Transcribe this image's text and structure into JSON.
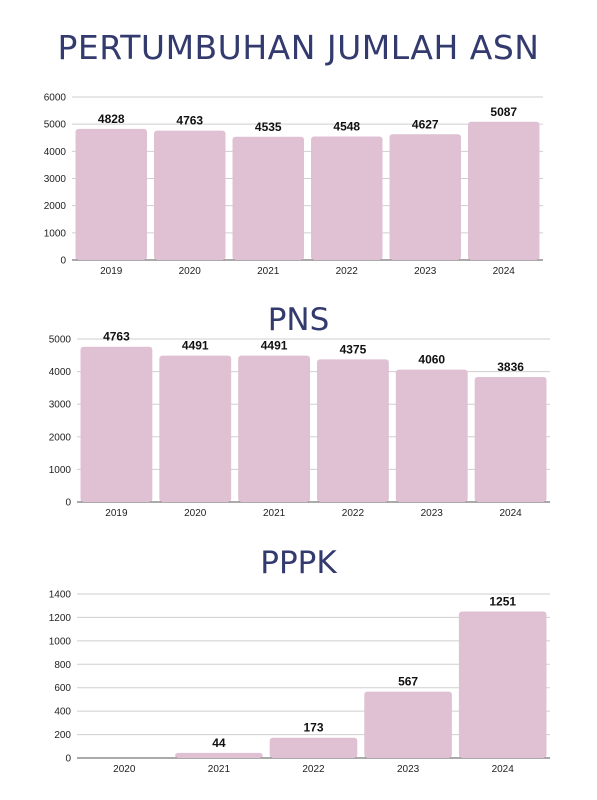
{
  "titles": [
    "PERTUMBUHAN JUMLAH ASN",
    "PNS",
    "PPPK"
  ],
  "bar_color": "#dfc1d3",
  "title_color": "#333a6e",
  "chart_data": [
    {
      "type": "bar",
      "title": "PERTUMBUHAN JUMLAH ASN",
      "categories": [
        "2019",
        "2020",
        "2021",
        "2022",
        "2023",
        "2024"
      ],
      "values": [
        4828,
        4763,
        4535,
        4548,
        4627,
        5087
      ],
      "ylim": [
        0,
        6000
      ],
      "yticks": [
        0,
        1000,
        2000,
        3000,
        4000,
        5000,
        6000
      ],
      "grid": true
    },
    {
      "type": "bar",
      "title": "PNS",
      "categories": [
        "2019",
        "2020",
        "2021",
        "2022",
        "2023",
        "2024"
      ],
      "values": [
        4763,
        4491,
        4491,
        4375,
        4060,
        3836
      ],
      "ylim": [
        0,
        5000
      ],
      "yticks": [
        0,
        1000,
        2000,
        3000,
        4000,
        5000
      ],
      "grid": true
    },
    {
      "type": "bar",
      "title": "PPPK",
      "categories": [
        "2020",
        "2021",
        "2022",
        "2023",
        "2024"
      ],
      "values": [
        0,
        44,
        173,
        567,
        1251
      ],
      "value_labels": [
        "",
        "44",
        "173",
        "567",
        "1251"
      ],
      "ylim": [
        0,
        1400
      ],
      "yticks": [
        0,
        200,
        400,
        600,
        800,
        1000,
        1200,
        1400
      ],
      "grid": true
    }
  ]
}
